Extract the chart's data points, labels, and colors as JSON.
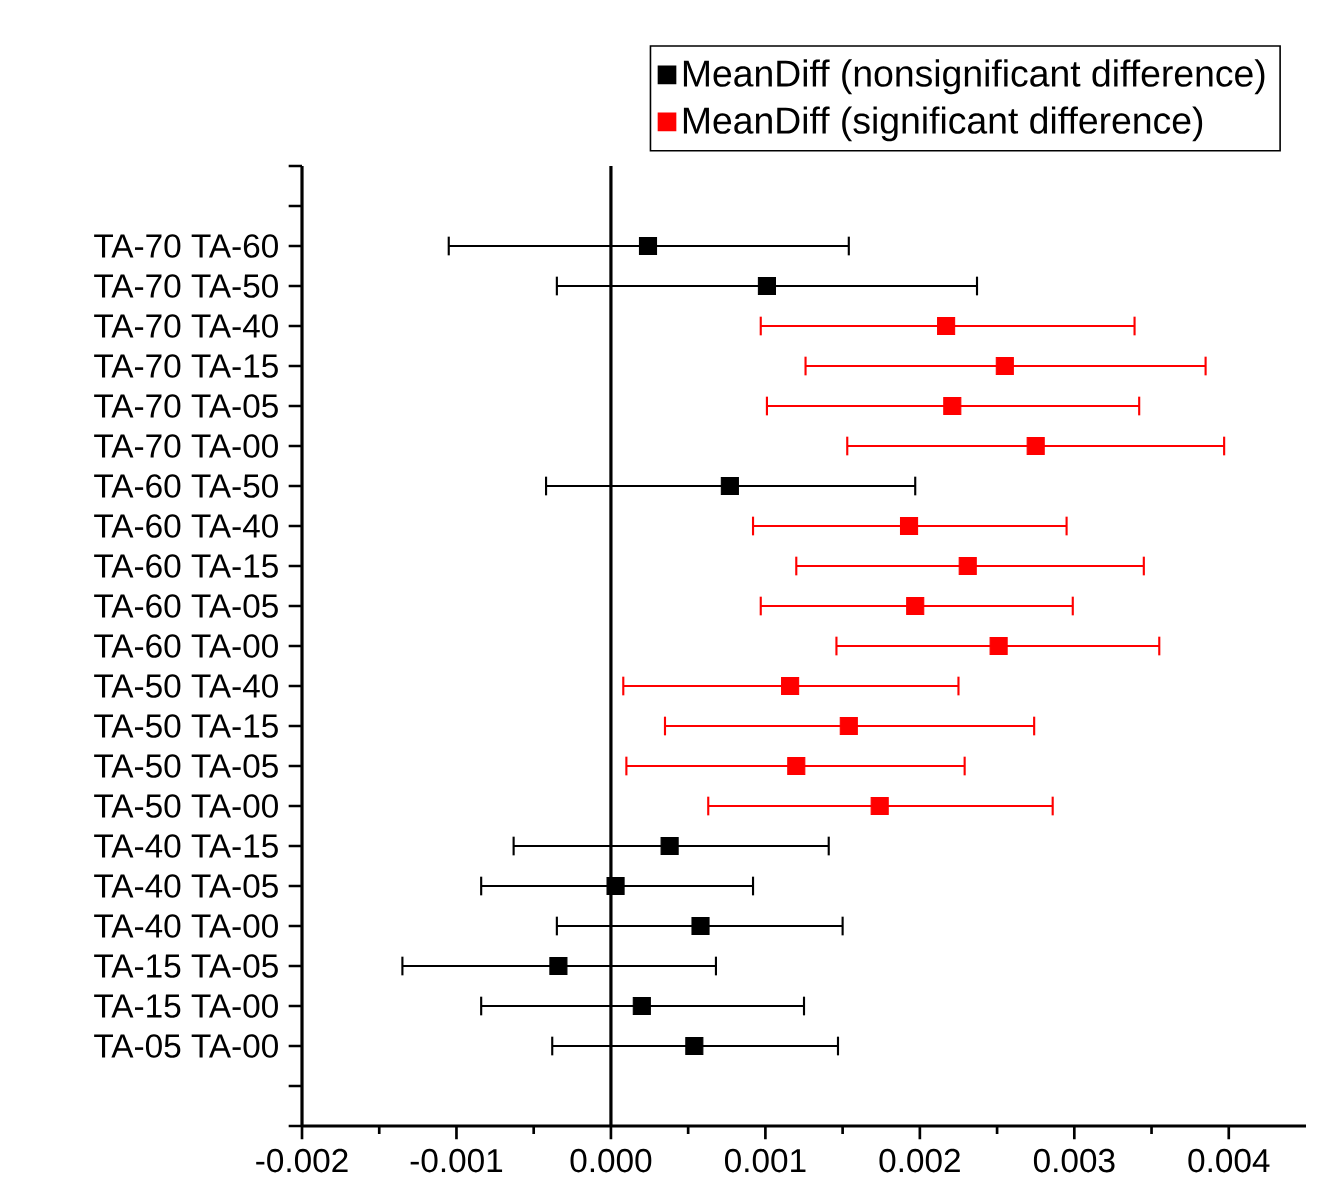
{
  "chart_data": {
    "type": "scatter",
    "orientation": "horizontal",
    "marker": "square",
    "legend": "top",
    "categories": [
      "TA-70  TA-60",
      "TA-70  TA-50",
      "TA-70  TA-40",
      "TA-70  TA-15",
      "TA-70  TA-05",
      "TA-70  TA-00",
      "TA-60  TA-50",
      "TA-60  TA-40",
      "TA-60  TA-15",
      "TA-60  TA-05",
      "TA-60  TA-00",
      "TA-50  TA-40",
      "TA-50  TA-15",
      "TA-50  TA-05",
      "TA-50  TA-00",
      "TA-40  TA-15",
      "TA-40  TA-05",
      "TA-40  TA-00",
      "TA-15  TA-05",
      "TA-15  TA-00",
      "TA-05  TA-00"
    ],
    "xlim": [
      -0.002,
      0.0045
    ],
    "xticks": [
      -0.002,
      -0.001,
      {
        "value": 0,
        "label": "0.000"
      },
      0.001,
      0.002,
      0.003,
      0.004
    ],
    "ref_lines": [
      {
        "axis": "x",
        "value": 0,
        "color": "#000000"
      }
    ],
    "series": [
      {
        "name": "MeanDiff (nonsignificant difference)",
        "color": "#000000",
        "values": [
          0.00024,
          0.00101,
          null,
          null,
          null,
          null,
          0.00077,
          null,
          null,
          null,
          null,
          null,
          null,
          null,
          null,
          0.00038,
          3e-05,
          0.00058,
          -0.00034,
          0.0002,
          0.00054
        ],
        "errors": [
          [
            -0.00105,
            0.00154
          ],
          [
            -0.00035,
            0.00237
          ],
          null,
          null,
          null,
          null,
          [
            -0.00042,
            0.00197
          ],
          null,
          null,
          null,
          null,
          null,
          null,
          null,
          null,
          [
            -0.00063,
            0.00141
          ],
          [
            -0.00084,
            0.00092
          ],
          [
            -0.00035,
            0.0015
          ],
          [
            -0.00135,
            0.00068
          ],
          [
            -0.00084,
            0.00125
          ],
          [
            -0.00038,
            0.00147
          ]
        ]
      },
      {
        "name": "MeanDiff (significant difference)",
        "color": "#ff0000",
        "values": [
          null,
          null,
          0.00217,
          0.00255,
          0.00221,
          0.00275,
          null,
          0.00193,
          0.00231,
          0.00197,
          0.00251,
          0.00116,
          0.00154,
          0.0012,
          0.00174,
          null,
          null,
          null,
          null,
          null,
          null
        ],
        "errors": [
          null,
          null,
          [
            0.00097,
            0.00339
          ],
          [
            0.00126,
            0.00385
          ],
          [
            0.00101,
            0.00342
          ],
          [
            0.00153,
            0.00397
          ],
          null,
          [
            0.00092,
            0.00295
          ],
          [
            0.0012,
            0.00345
          ],
          [
            0.00097,
            0.00299
          ],
          [
            0.00146,
            0.00355
          ],
          [
            8e-05,
            0.00225
          ],
          [
            0.00035,
            0.00274
          ],
          [
            0.0001,
            0.00229
          ],
          [
            0.00063,
            0.00286
          ],
          null,
          null,
          null,
          null,
          null,
          null
        ]
      }
    ]
  }
}
